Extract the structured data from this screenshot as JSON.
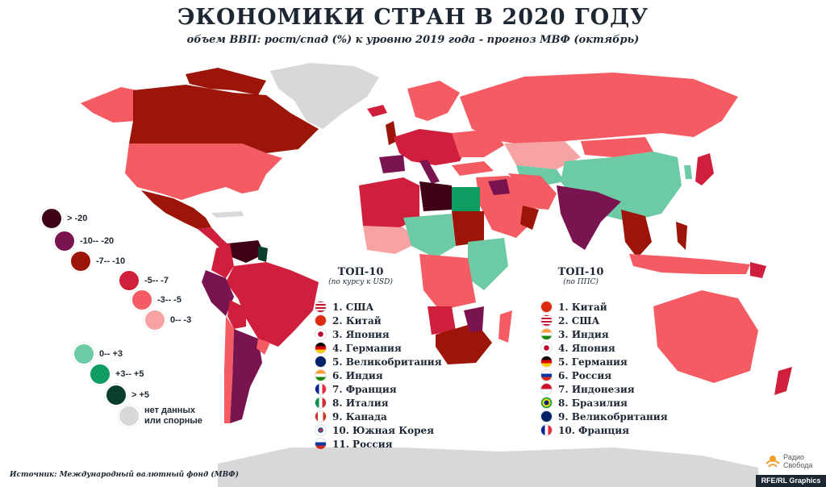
{
  "title": "ЭКОНОМИКИ СТРАН В 2020 ГОДУ",
  "subtitle": "объем ВВП: рост/спад (%) к уровню 2019 года - прогноз МВФ (октябрь)",
  "colors": {
    "gt_minus20": "#3d0314",
    "m10_m20": "#7a1450",
    "m7_m10": "#9c1508",
    "m5_m7": "#d01f3c",
    "m3_m5": "#f45b62",
    "m0_m3": "#f7a2a3",
    "p0_p3": "#6ccaa5",
    "p3_p5": "#0f9c63",
    "gt_p5": "#0a3d2c",
    "no_data": "#d8d8d8"
  },
  "legend": [
    {
      "label": "> -20",
      "color": "#3d0314"
    },
    {
      "label": "-10--  -20",
      "color": "#7a1450"
    },
    {
      "label": "-7--  -10",
      "color": "#9c1508"
    },
    {
      "label": "-5--  -7",
      "color": "#d01f3c"
    },
    {
      "label": "-3--  -5",
      "color": "#f45b62"
    },
    {
      "label": "0--  -3",
      "color": "#f7a2a3"
    },
    {
      "label": "0--  +3",
      "color": "#6ccaa5"
    },
    {
      "label": "+3--  +5",
      "color": "#0f9c63"
    },
    {
      "label": "> +5",
      "color": "#0a3d2c"
    },
    {
      "label": "нет данных\nили спорные",
      "color": "#d8d8d8"
    }
  ],
  "top_usd": {
    "heading": "ТОП-10",
    "subheading": "(по курсу к USD)",
    "items": [
      {
        "label": "1. США",
        "flag": "us-flag"
      },
      {
        "label": "2. Китай",
        "flag": "cn-flag"
      },
      {
        "label": "3. Япония",
        "flag": "jp-flag"
      },
      {
        "label": "4. Германия",
        "flag": "de-flag"
      },
      {
        "label": "5. Великобритания",
        "flag": "gb-flag"
      },
      {
        "label": "6. Индия",
        "flag": "in-flag"
      },
      {
        "label": "7. Франция",
        "flag": "fr-flag"
      },
      {
        "label": "8. Италия",
        "flag": "it-flag"
      },
      {
        "label": "9. Канада",
        "flag": "ca-flag"
      },
      {
        "label": "10. Южная Корея",
        "flag": "kr-flag"
      },
      {
        "label": "11. Россия",
        "flag": "ru-flag"
      }
    ]
  },
  "top_ppp": {
    "heading": "ТОП-10",
    "subheading": "(по ППС)",
    "items": [
      {
        "label": "1. Китай",
        "flag": "cn-flag"
      },
      {
        "label": "2. США",
        "flag": "us-flag"
      },
      {
        "label": "3. Индия",
        "flag": "in-flag"
      },
      {
        "label": "4. Япония",
        "flag": "jp-flag"
      },
      {
        "label": "5. Германия",
        "flag": "de-flag"
      },
      {
        "label": "6. Россия",
        "flag": "ru-flag"
      },
      {
        "label": "7. Индонезия",
        "flag": "id-flag"
      },
      {
        "label": "8. Бразилия",
        "flag": "br-flag"
      },
      {
        "label": "9. Великобритания",
        "flag": "gb-flag"
      },
      {
        "label": "10. Франция",
        "flag": "fr-flag"
      }
    ]
  },
  "source": "Источник: Международный валютный фонд (МВФ)",
  "credit": "RFE/RL Graphics",
  "logo_text_1": "Радио",
  "logo_text_2": "Свобода"
}
